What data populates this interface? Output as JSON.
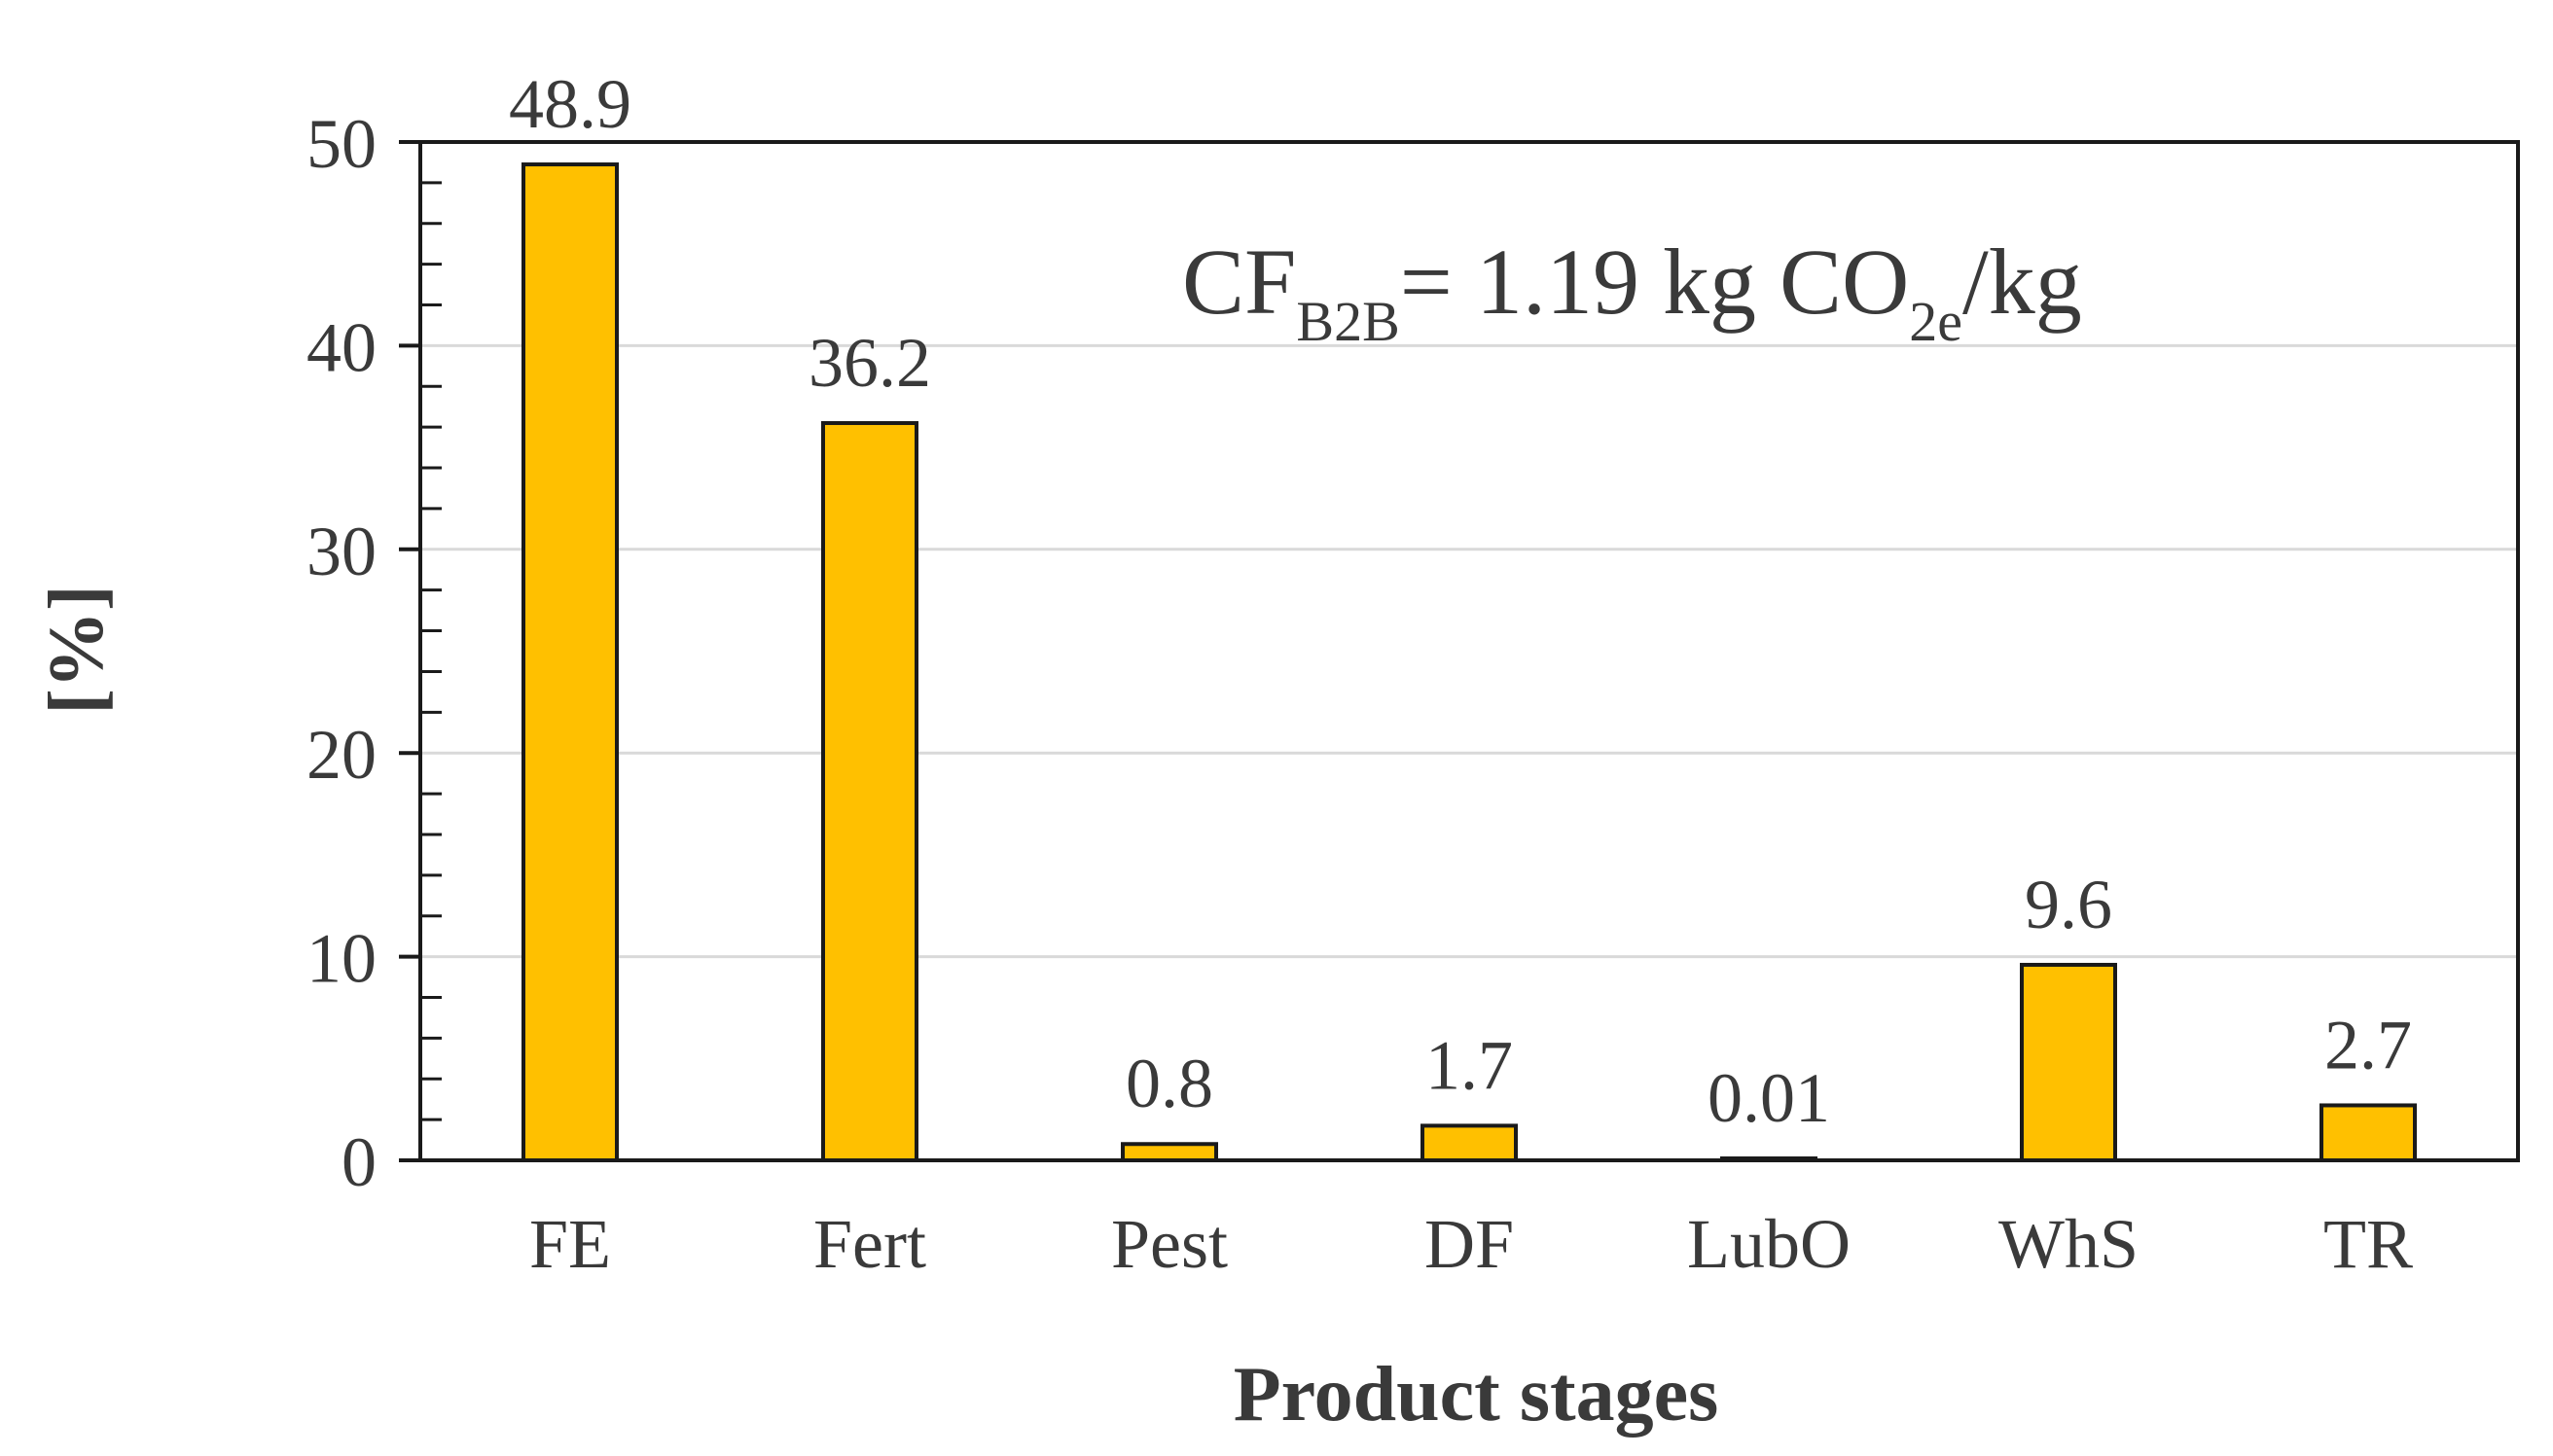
{
  "chart_data": {
    "type": "bar",
    "title": "",
    "xlabel": "Product stages",
    "ylabel": "[%]",
    "categories": [
      "FE",
      "Fert",
      "Pest",
      "DF",
      "LubO",
      "WhS",
      "TR"
    ],
    "values": [
      48.9,
      36.2,
      0.8,
      1.7,
      0.01,
      9.6,
      2.7
    ],
    "value_labels": [
      "48.9",
      "36.2",
      "0.8",
      "1.7",
      "0.01",
      "9.6",
      "2.7"
    ],
    "ylim": [
      0,
      50
    ],
    "y_ticks": [
      "0",
      "10",
      "20",
      "30",
      "40",
      "50"
    ],
    "grid": true,
    "annotation": {
      "main": "CF",
      "sub1": "B2B",
      "mid": "= 1.19 kg CO",
      "sub2": "2e",
      "tail": "/kg"
    },
    "colors": {
      "bar_fill": "#FFC000",
      "bar_stroke": "#1a1a1a",
      "grid": "#d9d9d9",
      "axis": "#1a1a1a",
      "text": "#3a3a3a"
    }
  }
}
